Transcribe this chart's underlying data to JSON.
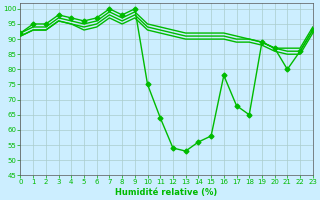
{
  "xlabel": "Humidité relative (%)",
  "background_color": "#cceeff",
  "grid_color": "#aacccc",
  "line_color": "#00bb00",
  "ylim": [
    45,
    102
  ],
  "xlim": [
    0,
    23
  ],
  "yticks": [
    45,
    50,
    55,
    60,
    65,
    70,
    75,
    80,
    85,
    90,
    95,
    100
  ],
  "xticks": [
    0,
    1,
    2,
    3,
    4,
    5,
    6,
    7,
    8,
    9,
    10,
    11,
    12,
    13,
    14,
    15,
    16,
    17,
    18,
    19,
    20,
    21,
    22,
    23
  ],
  "series": [
    {
      "x": [
        0,
        1,
        2,
        3,
        4,
        5,
        6,
        7,
        8,
        9,
        10,
        11,
        12,
        13,
        14,
        15,
        16,
        17,
        18,
        19,
        20,
        21,
        22,
        23
      ],
      "y": [
        92,
        95,
        95,
        98,
        97,
        96,
        97,
        100,
        98,
        100,
        75,
        64,
        54,
        53,
        56,
        58,
        78,
        68,
        65,
        89,
        87,
        80,
        86,
        93
      ],
      "marker": "D",
      "markersize": 2.5,
      "linewidth": 1.0
    },
    {
      "x": [
        0,
        1,
        2,
        3,
        4,
        5,
        6,
        7,
        8,
        9,
        10,
        11,
        12,
        13,
        14,
        15,
        16,
        17,
        18,
        19,
        20,
        21,
        22,
        23
      ],
      "y": [
        92,
        94,
        94,
        97,
        96,
        95,
        96,
        99,
        97,
        99,
        95,
        94,
        93,
        92,
        92,
        92,
        92,
        91,
        90,
        89,
        87,
        87,
        87,
        94
      ],
      "marker": null,
      "linewidth": 1.0
    },
    {
      "x": [
        0,
        1,
        2,
        3,
        4,
        5,
        6,
        7,
        8,
        9,
        10,
        11,
        12,
        13,
        14,
        15,
        16,
        17,
        18,
        19,
        20,
        21,
        22,
        23
      ],
      "y": [
        91,
        93,
        93,
        96,
        95,
        94,
        95,
        98,
        96,
        98,
        94,
        93,
        92,
        91,
        91,
        91,
        91,
        90,
        90,
        89,
        87,
        86,
        86,
        93
      ],
      "marker": null,
      "linewidth": 1.0
    },
    {
      "x": [
        0,
        1,
        2,
        3,
        4,
        5,
        6,
        7,
        8,
        9,
        10,
        11,
        12,
        13,
        14,
        15,
        16,
        17,
        18,
        19,
        20,
        21,
        22,
        23
      ],
      "y": [
        91,
        93,
        93,
        96,
        95,
        93,
        94,
        97,
        95,
        97,
        93,
        92,
        91,
        90,
        90,
        90,
        90,
        89,
        89,
        88,
        86,
        85,
        85,
        92
      ],
      "marker": null,
      "linewidth": 1.0
    }
  ]
}
